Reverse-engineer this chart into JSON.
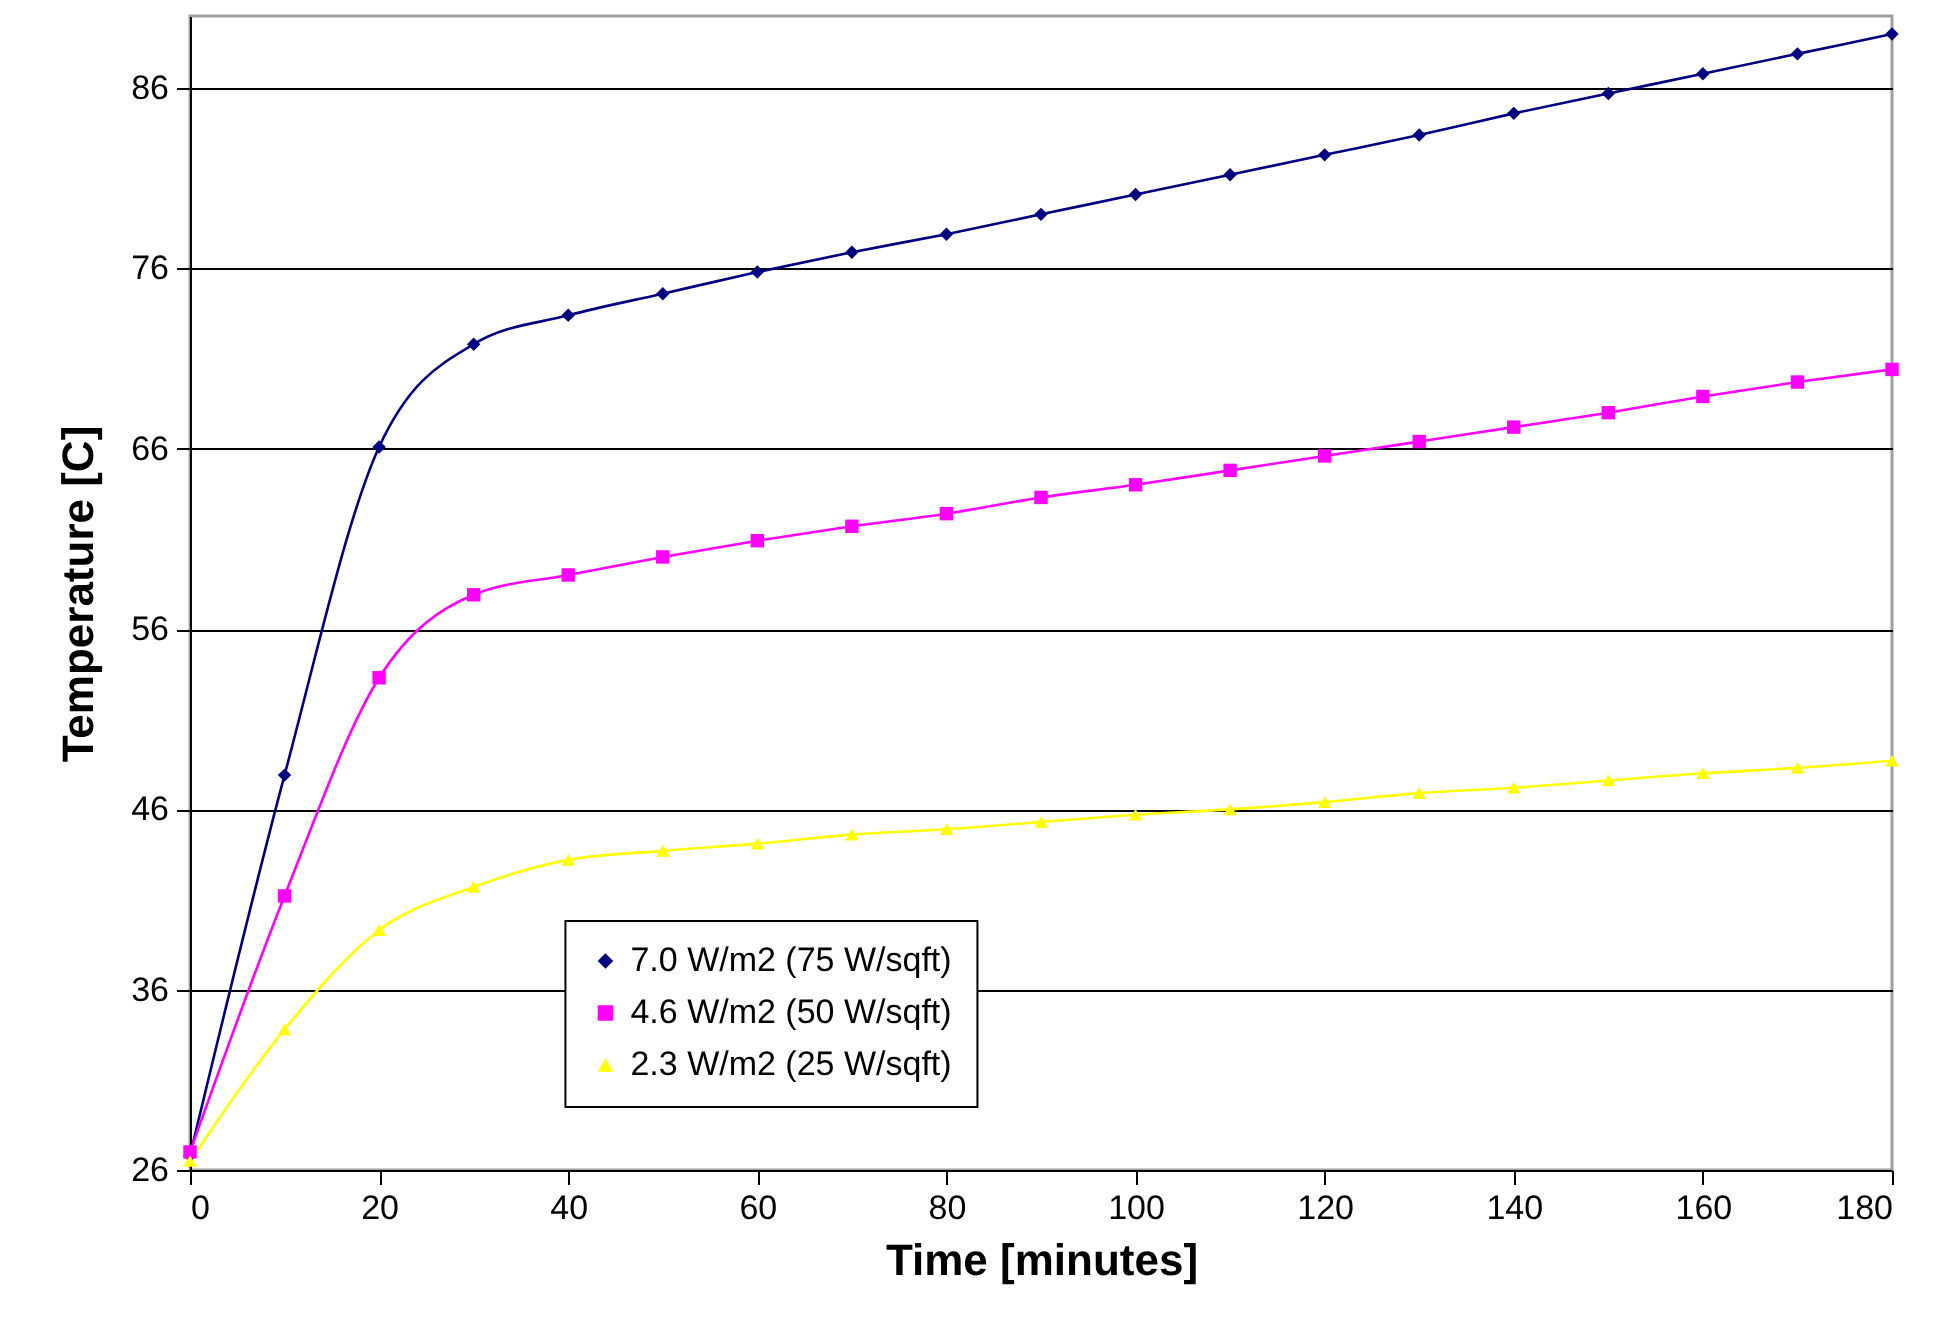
{
  "chart_data": {
    "type": "line",
    "xlabel": "Time [minutes]",
    "ylabel": "Temperature [C]",
    "x": [
      0,
      10,
      20,
      30,
      40,
      50,
      60,
      70,
      80,
      90,
      100,
      110,
      120,
      130,
      140,
      150,
      160,
      170,
      180
    ],
    "series": [
      {
        "name": "7.0 W/m2 (75 W/sqft)",
        "color": "#000080",
        "marker": "diamond",
        "values": [
          26.8,
          47.9,
          66.1,
          71.8,
          73.4,
          74.6,
          75.8,
          76.9,
          77.9,
          79.0,
          80.1,
          81.2,
          82.3,
          83.4,
          84.6,
          85.7,
          86.8,
          87.9,
          89.0
        ]
      },
      {
        "name": "4.6 W/m2 (50 W/sqft)",
        "color": "#ff00ff",
        "marker": "square",
        "values": [
          27.0,
          41.2,
          53.3,
          57.9,
          59.0,
          60.0,
          60.9,
          61.7,
          62.4,
          63.3,
          64.0,
          64.8,
          65.6,
          66.4,
          67.2,
          68.0,
          68.9,
          69.7,
          70.4
        ]
      },
      {
        "name": "2.3 W/m2 (25 W/sqft)",
        "color": "#ffff00",
        "marker": "triangle",
        "values": [
          26.5,
          33.8,
          39.3,
          41.7,
          43.2,
          43.7,
          44.1,
          44.6,
          44.9,
          45.3,
          45.7,
          46.0,
          46.4,
          46.9,
          47.2,
          47.6,
          48.0,
          48.3,
          48.7
        ]
      }
    ],
    "xlim": [
      0,
      180
    ],
    "xticks": [
      0,
      20,
      40,
      60,
      80,
      100,
      120,
      140,
      160,
      180
    ],
    "ylim": [
      26,
      90
    ],
    "yticks": [
      26,
      36,
      46,
      56,
      66,
      76,
      86
    ],
    "grid": "y",
    "legend": "bottom left",
    "line_style": "solid"
  }
}
